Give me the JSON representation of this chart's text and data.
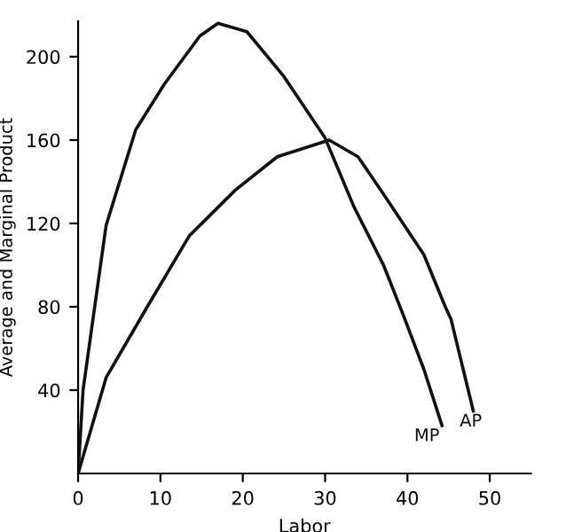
{
  "chart_data": {
    "type": "line",
    "xlabel": "Labor",
    "ylabel": "Average and Marginal Product",
    "series": [
      {
        "name": "MP",
        "color": "#111111",
        "x": [
          0,
          0.6,
          3.4,
          7,
          10.5,
          14.8,
          17,
          20.5,
          24.9,
          30,
          33.5,
          37.1,
          39.5,
          42,
          44.2
        ],
        "values": [
          0,
          40,
          119,
          165,
          187,
          210,
          216,
          212,
          191,
          161,
          128,
          100,
          76,
          50,
          23
        ]
      },
      {
        "name": "AP",
        "color": "#111111",
        "x": [
          0,
          3.4,
          8.4,
          13.5,
          19.1,
          24.2,
          30.5,
          34,
          37.1,
          42,
          44.6,
          45.3,
          48
        ],
        "values": [
          0,
          46,
          80,
          114,
          136,
          152,
          160,
          152,
          134,
          105,
          80,
          74,
          30
        ]
      }
    ],
    "xlim": [
      0,
      55
    ],
    "ylim": [
      0,
      217
    ],
    "xticks": [
      0,
      10,
      20,
      30,
      40,
      50
    ],
    "yticks": [
      40,
      80,
      120,
      160,
      200
    ],
    "grid": false,
    "legend": false,
    "marker": "none",
    "line_style": "solid"
  }
}
